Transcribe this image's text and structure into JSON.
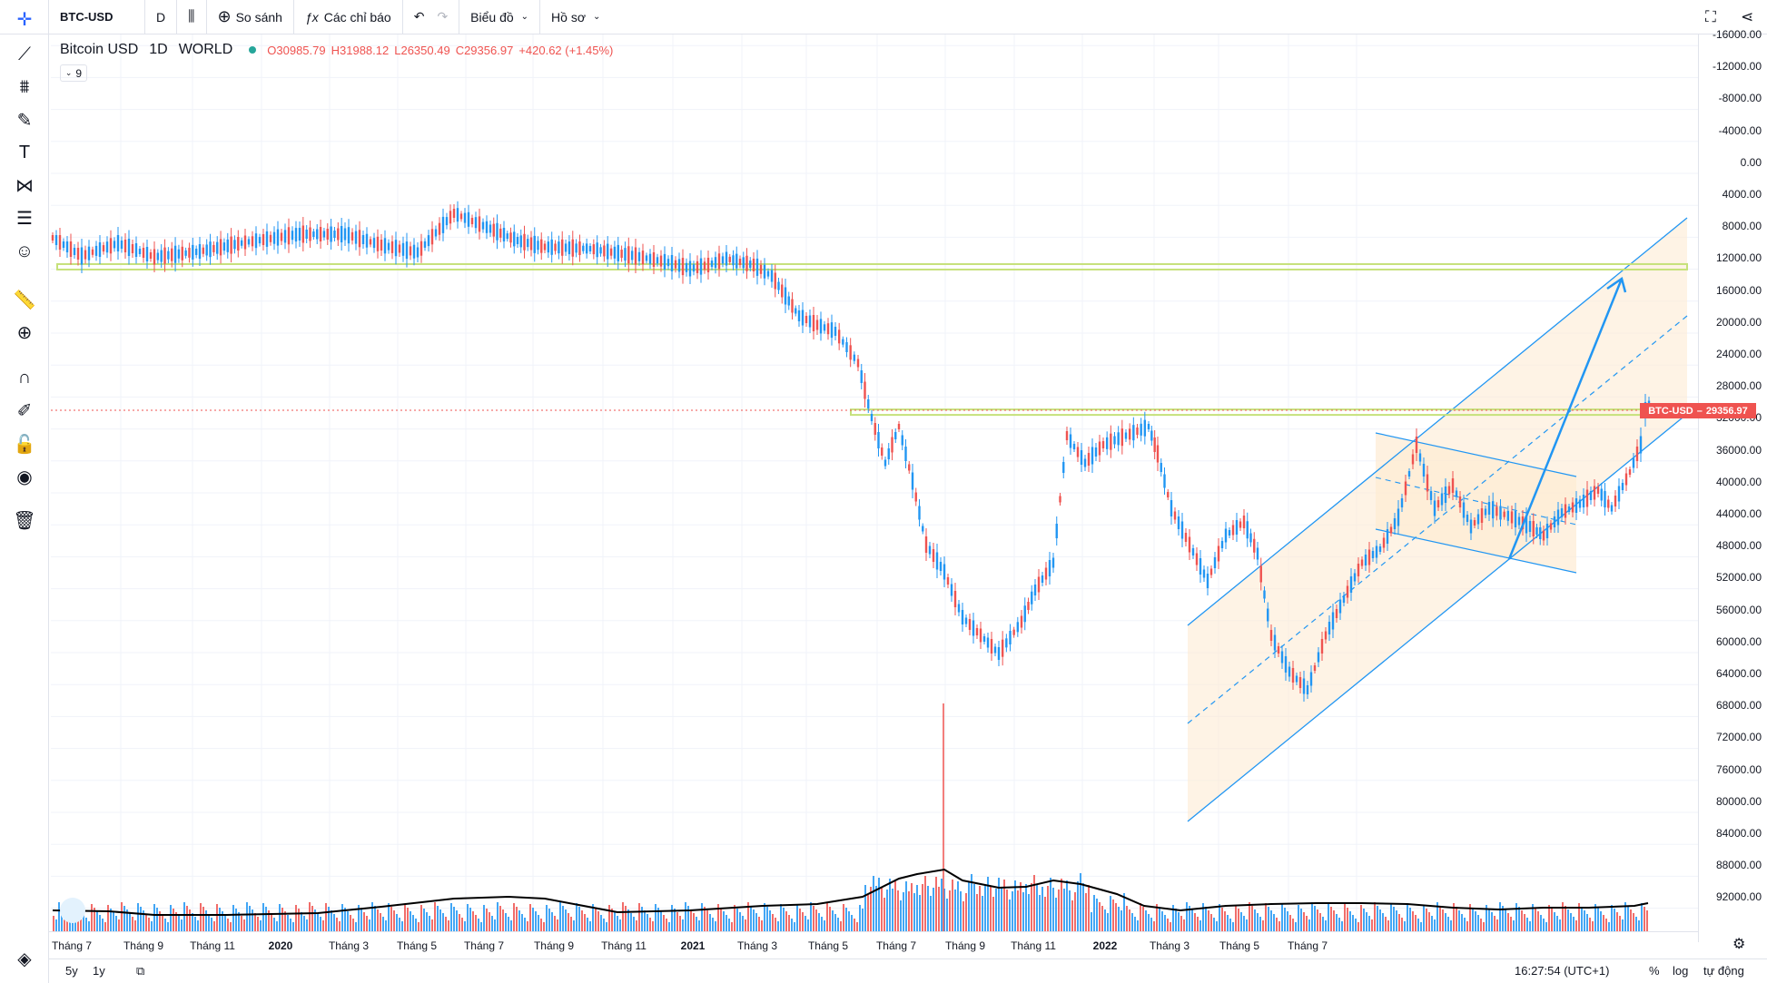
{
  "toolbar": {
    "symbol": "BTC-USD",
    "interval": "D",
    "compare_label": "So sánh",
    "indicators_label": "Các chỉ báo",
    "chart_label": "Biểu đồ",
    "profile_label": "Hồ sơ"
  },
  "legend": {
    "name": "Bitcoin USD",
    "interval": "1D",
    "exchange": "WORLD",
    "open": "O30985.79",
    "high": "H31988.12",
    "low": "L26350.49",
    "close": "C29356.97",
    "change": "+420.62 (+1.45%)",
    "indicator_count": "9"
  },
  "price_label": "BTC-USD",
  "price_value": "29356.97",
  "price_axis": [
    "-16000.00",
    "-12000.00",
    "-8000.00",
    "-4000.00",
    "0.00",
    "4000.00",
    "8000.00",
    "12000.00",
    "16000.00",
    "20000.00",
    "24000.00",
    "28000.00",
    "32000.00",
    "36000.00",
    "40000.00",
    "44000.00",
    "48000.00",
    "52000.00",
    "56000.00",
    "60000.00",
    "64000.00",
    "68000.00",
    "72000.00",
    "76000.00",
    "80000.00",
    "84000.00",
    "88000.00",
    "92000.00"
  ],
  "time_axis": [
    {
      "label": "Tháng 7",
      "bold": false
    },
    {
      "label": "Tháng 9",
      "bold": false
    },
    {
      "label": "Tháng 11",
      "bold": false
    },
    {
      "label": "2020",
      "bold": true
    },
    {
      "label": "Tháng 3",
      "bold": false
    },
    {
      "label": "Tháng 5",
      "bold": false
    },
    {
      "label": "Tháng 7",
      "bold": false
    },
    {
      "label": "Tháng 9",
      "bold": false
    },
    {
      "label": "Tháng 11",
      "bold": false
    },
    {
      "label": "2021",
      "bold": true
    },
    {
      "label": "Tháng 3",
      "bold": false
    },
    {
      "label": "Tháng 5",
      "bold": false
    },
    {
      "label": "Tháng 7",
      "bold": false
    },
    {
      "label": "Tháng 9",
      "bold": false
    },
    {
      "label": "Tháng 11",
      "bold": false
    },
    {
      "label": "2022",
      "bold": true
    },
    {
      "label": "Tháng 3",
      "bold": false
    },
    {
      "label": "Tháng 5",
      "bold": false
    },
    {
      "label": "Tháng 7",
      "bold": false
    }
  ],
  "bottom": {
    "range_5y": "5y",
    "range_1y": "1y",
    "time": "16:27:54 (UTC+1)",
    "percent": "%",
    "log": "log",
    "auto": "tự động"
  },
  "colors": {
    "up": "#26a69a",
    "down": "#ef5350",
    "candle_blue": "#2196f3",
    "candle_red": "#ef5350",
    "support_line": "#c6e17a",
    "channel": "#2196f3",
    "channel_fill": "#fdebd3"
  },
  "icons": {
    "left_toolbar": [
      "crosshair-icon",
      "trendline-icon",
      "fib-icon",
      "brush-icon",
      "text-icon",
      "pattern-icon",
      "prediction-icon",
      "emoji-icon",
      "ruler-icon",
      "zoom-icon",
      "magnet-icon",
      "lock-drawing-icon",
      "lock-icon",
      "eye-icon",
      "trash-icon"
    ]
  },
  "chart_data": {
    "type": "candlestick",
    "symbol": "BTC-USD",
    "axis_inverted": true,
    "ylim": [
      -16000,
      92000
    ],
    "last_close": 29356.97,
    "horizontal_levels": [
      11700,
      29900
    ]
  }
}
